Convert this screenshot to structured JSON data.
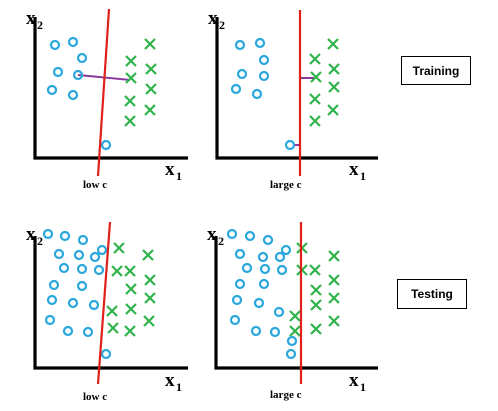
{
  "labels": {
    "x_axis": "x",
    "y_axis": "x",
    "subscript_x": "1",
    "subscript_y": "2"
  },
  "boxes": {
    "training": "Training",
    "testing": "Testing"
  },
  "panels": [
    {
      "id": "train-low",
      "caption": "low c"
    },
    {
      "id": "train-large",
      "caption": "large c"
    },
    {
      "id": "test-low",
      "caption": "low c"
    },
    {
      "id": "test-large",
      "caption": "large c"
    }
  ],
  "colors": {
    "circle": "#2aa7dd",
    "cross": "#2fb34a",
    "boundary": "#e0201a",
    "connector": "#8b3a9c"
  }
}
